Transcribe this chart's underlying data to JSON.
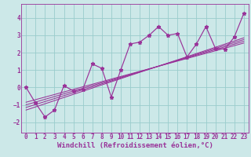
{
  "xlabel": "Windchill (Refroidissement éolien,°C)",
  "x_data": [
    0,
    1,
    2,
    3,
    4,
    5,
    6,
    7,
    8,
    9,
    10,
    11,
    12,
    13,
    14,
    15,
    16,
    17,
    18,
    19,
    20,
    21,
    22,
    23
  ],
  "y_data": [
    0.0,
    -0.9,
    -1.7,
    -1.3,
    0.1,
    -0.2,
    -0.1,
    1.35,
    1.1,
    -0.55,
    1.0,
    2.5,
    2.6,
    3.0,
    3.5,
    3.0,
    3.1,
    1.75,
    2.5,
    3.5,
    2.25,
    2.2,
    2.9,
    4.25
  ],
  "reg_lines": [
    {
      "x": [
        0,
        23
      ],
      "y": [
        -1.3,
        2.85
      ]
    },
    {
      "x": [
        0,
        23
      ],
      "y": [
        -1.15,
        2.75
      ]
    },
    {
      "x": [
        0,
        23
      ],
      "y": [
        -1.0,
        2.65
      ]
    },
    {
      "x": [
        0,
        23
      ],
      "y": [
        -0.85,
        2.55
      ]
    }
  ],
  "bg_color": "#cce8e8",
  "line_color": "#993399",
  "grid_color": "#99cccc",
  "ylim": [
    -2.6,
    4.8
  ],
  "xlim": [
    -0.5,
    23.5
  ],
  "yticks": [
    -2,
    -1,
    0,
    1,
    2,
    3,
    4
  ],
  "xticks": [
    0,
    1,
    2,
    3,
    4,
    5,
    6,
    7,
    8,
    9,
    10,
    11,
    12,
    13,
    14,
    15,
    16,
    17,
    18,
    19,
    20,
    21,
    22,
    23
  ],
  "tick_fontsize": 5.5,
  "xlabel_fontsize": 6.5
}
